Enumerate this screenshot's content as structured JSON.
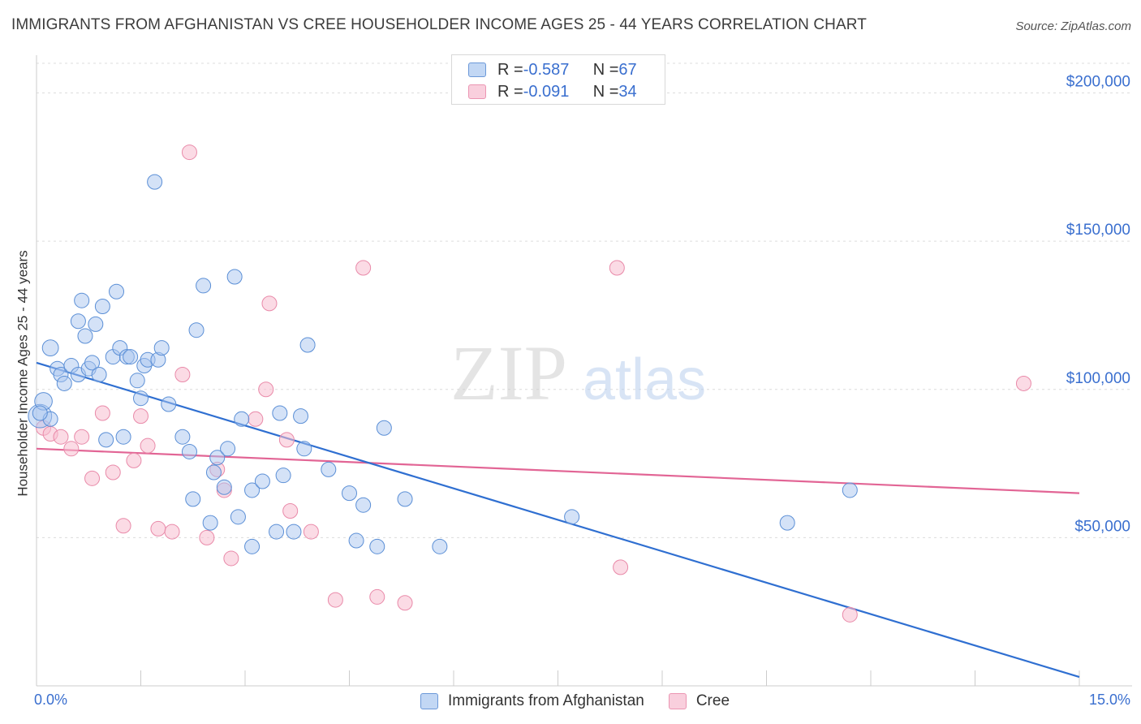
{
  "title": "IMMIGRANTS FROM AFGHANISTAN VS CREE HOUSEHOLDER INCOME AGES 25 - 44 YEARS CORRELATION CHART",
  "source": "Source: ZipAtlas.com",
  "watermark": {
    "zip": "ZIP",
    "atlas": "atlas"
  },
  "legend_top": [
    {
      "r_label": "R = ",
      "r_value": "-0.587",
      "n_label": "N = ",
      "n_value": "67"
    },
    {
      "r_label": "R = ",
      "r_value": "-0.091",
      "n_label": "N = ",
      "n_value": "34"
    }
  ],
  "x_axis": {
    "min_label": "0.0%",
    "max_label": "15.0%"
  },
  "colors": {
    "blue_fill": "#a9c6ef",
    "blue_stroke": "#5b8fd6",
    "blue_line": "#2f6fd1",
    "pink_fill": "#f7bdd0",
    "pink_stroke": "#e98aa9",
    "pink_line": "#e26595",
    "axis_text": "#3a6fcf",
    "grid": "#dcdcdc"
  },
  "chart_data": {
    "type": "scatter",
    "title": "IMMIGRANTS FROM AFGHANISTAN VS CREE HOUSEHOLDER INCOME AGES 25 - 44 YEARS CORRELATION CHART",
    "xlabel": "",
    "ylabel": "Householder Income Ages 25 - 44 years",
    "xlim": [
      0,
      15
    ],
    "ylim": [
      0,
      210000
    ],
    "x_tick_labels": [
      "0.0%",
      "15.0%"
    ],
    "y_ticks": [
      50000,
      100000,
      150000,
      200000
    ],
    "y_tick_labels": [
      "$50,000",
      "$100,000",
      "$150,000",
      "$200,000"
    ],
    "grid": true,
    "legend_position": "bottom-center",
    "series": [
      {
        "name": "Immigrants from Afghanistan",
        "color": "#a9c6ef",
        "r": -0.587,
        "n": 67,
        "trend": {
          "x": [
            0,
            15
          ],
          "y": [
            109000,
            3000
          ]
        },
        "points": [
          {
            "x": 0.05,
            "y": 91000,
            "s": 1.6
          },
          {
            "x": 0.1,
            "y": 96000,
            "s": 1.2
          },
          {
            "x": 0.2,
            "y": 90000,
            "s": 1
          },
          {
            "x": 0.2,
            "y": 114000,
            "s": 1.1
          },
          {
            "x": 0.3,
            "y": 107000,
            "s": 1
          },
          {
            "x": 0.35,
            "y": 105000,
            "s": 1
          },
          {
            "x": 0.4,
            "y": 102000,
            "s": 1
          },
          {
            "x": 0.5,
            "y": 108000,
            "s": 1
          },
          {
            "x": 0.6,
            "y": 123000,
            "s": 1
          },
          {
            "x": 0.6,
            "y": 105000,
            "s": 1
          },
          {
            "x": 0.65,
            "y": 130000,
            "s": 1
          },
          {
            "x": 0.7,
            "y": 118000,
            "s": 1
          },
          {
            "x": 0.75,
            "y": 107000,
            "s": 1
          },
          {
            "x": 0.8,
            "y": 109000,
            "s": 1
          },
          {
            "x": 0.85,
            "y": 122000,
            "s": 1
          },
          {
            "x": 0.9,
            "y": 105000,
            "s": 1
          },
          {
            "x": 0.95,
            "y": 128000,
            "s": 1
          },
          {
            "x": 1.0,
            "y": 83000,
            "s": 1
          },
          {
            "x": 1.1,
            "y": 111000,
            "s": 1
          },
          {
            "x": 1.15,
            "y": 133000,
            "s": 1
          },
          {
            "x": 1.2,
            "y": 114000,
            "s": 1
          },
          {
            "x": 1.25,
            "y": 84000,
            "s": 1
          },
          {
            "x": 1.3,
            "y": 111000,
            "s": 1
          },
          {
            "x": 1.35,
            "y": 111000,
            "s": 1
          },
          {
            "x": 1.45,
            "y": 103000,
            "s": 1
          },
          {
            "x": 1.5,
            "y": 97000,
            "s": 1
          },
          {
            "x": 1.55,
            "y": 108000,
            "s": 1
          },
          {
            "x": 1.6,
            "y": 110000,
            "s": 1
          },
          {
            "x": 1.7,
            "y": 170000,
            "s": 1
          },
          {
            "x": 1.75,
            "y": 110000,
            "s": 1
          },
          {
            "x": 1.8,
            "y": 114000,
            "s": 1
          },
          {
            "x": 1.9,
            "y": 95000,
            "s": 1
          },
          {
            "x": 2.1,
            "y": 84000,
            "s": 1
          },
          {
            "x": 2.2,
            "y": 79000,
            "s": 1
          },
          {
            "x": 2.25,
            "y": 63000,
            "s": 1
          },
          {
            "x": 2.3,
            "y": 120000,
            "s": 1
          },
          {
            "x": 2.4,
            "y": 135000,
            "s": 1
          },
          {
            "x": 2.5,
            "y": 55000,
            "s": 1
          },
          {
            "x": 2.55,
            "y": 72000,
            "s": 1
          },
          {
            "x": 2.6,
            "y": 77000,
            "s": 1
          },
          {
            "x": 2.7,
            "y": 67000,
            "s": 1
          },
          {
            "x": 2.75,
            "y": 80000,
            "s": 1
          },
          {
            "x": 2.85,
            "y": 138000,
            "s": 1
          },
          {
            "x": 2.9,
            "y": 57000,
            "s": 1
          },
          {
            "x": 2.95,
            "y": 90000,
            "s": 1
          },
          {
            "x": 3.1,
            "y": 66000,
            "s": 1
          },
          {
            "x": 3.1,
            "y": 47000,
            "s": 1
          },
          {
            "x": 3.25,
            "y": 69000,
            "s": 1
          },
          {
            "x": 3.45,
            "y": 52000,
            "s": 1
          },
          {
            "x": 3.5,
            "y": 92000,
            "s": 1
          },
          {
            "x": 3.55,
            "y": 71000,
            "s": 1
          },
          {
            "x": 3.7,
            "y": 52000,
            "s": 1
          },
          {
            "x": 3.8,
            "y": 91000,
            "s": 1
          },
          {
            "x": 3.85,
            "y": 80000,
            "s": 1
          },
          {
            "x": 3.9,
            "y": 115000,
            "s": 1
          },
          {
            "x": 4.2,
            "y": 73000,
            "s": 1
          },
          {
            "x": 4.5,
            "y": 65000,
            "s": 1
          },
          {
            "x": 4.6,
            "y": 49000,
            "s": 1
          },
          {
            "x": 4.7,
            "y": 61000,
            "s": 1
          },
          {
            "x": 4.9,
            "y": 47000,
            "s": 1
          },
          {
            "x": 5.0,
            "y": 87000,
            "s": 1
          },
          {
            "x": 5.3,
            "y": 63000,
            "s": 1
          },
          {
            "x": 5.8,
            "y": 47000,
            "s": 1
          },
          {
            "x": 7.7,
            "y": 57000,
            "s": 1
          },
          {
            "x": 10.8,
            "y": 55000,
            "s": 1
          },
          {
            "x": 11.7,
            "y": 66000,
            "s": 1
          },
          {
            "x": 0.05,
            "y": 92000,
            "s": 1
          }
        ]
      },
      {
        "name": "Cree",
        "color": "#f7bdd0",
        "r": -0.091,
        "n": 34,
        "trend": {
          "x": [
            0,
            15
          ],
          "y": [
            80000,
            65000
          ]
        },
        "points": [
          {
            "x": 0.1,
            "y": 87000,
            "s": 1
          },
          {
            "x": 0.2,
            "y": 85000,
            "s": 1
          },
          {
            "x": 0.35,
            "y": 84000,
            "s": 1
          },
          {
            "x": 0.5,
            "y": 80000,
            "s": 1
          },
          {
            "x": 0.65,
            "y": 84000,
            "s": 1
          },
          {
            "x": 0.8,
            "y": 70000,
            "s": 1
          },
          {
            "x": 0.95,
            "y": 92000,
            "s": 1
          },
          {
            "x": 1.1,
            "y": 72000,
            "s": 1
          },
          {
            "x": 1.25,
            "y": 54000,
            "s": 1
          },
          {
            "x": 1.4,
            "y": 76000,
            "s": 1
          },
          {
            "x": 1.5,
            "y": 91000,
            "s": 1
          },
          {
            "x": 1.6,
            "y": 81000,
            "s": 1
          },
          {
            "x": 1.75,
            "y": 53000,
            "s": 1
          },
          {
            "x": 1.95,
            "y": 52000,
            "s": 1
          },
          {
            "x": 2.1,
            "y": 105000,
            "s": 1
          },
          {
            "x": 2.2,
            "y": 180000,
            "s": 1
          },
          {
            "x": 2.45,
            "y": 50000,
            "s": 1
          },
          {
            "x": 2.6,
            "y": 73000,
            "s": 1
          },
          {
            "x": 2.7,
            "y": 66000,
            "s": 1
          },
          {
            "x": 2.8,
            "y": 43000,
            "s": 1
          },
          {
            "x": 3.15,
            "y": 90000,
            "s": 1
          },
          {
            "x": 3.3,
            "y": 100000,
            "s": 1
          },
          {
            "x": 3.35,
            "y": 129000,
            "s": 1
          },
          {
            "x": 3.6,
            "y": 83000,
            "s": 1
          },
          {
            "x": 3.65,
            "y": 59000,
            "s": 1
          },
          {
            "x": 3.95,
            "y": 52000,
            "s": 1
          },
          {
            "x": 4.3,
            "y": 29000,
            "s": 1
          },
          {
            "x": 4.7,
            "y": 141000,
            "s": 1
          },
          {
            "x": 4.9,
            "y": 30000,
            "s": 1
          },
          {
            "x": 5.3,
            "y": 28000,
            "s": 1
          },
          {
            "x": 8.35,
            "y": 141000,
            "s": 1
          },
          {
            "x": 8.4,
            "y": 40000,
            "s": 1
          },
          {
            "x": 11.7,
            "y": 24000,
            "s": 1
          },
          {
            "x": 14.2,
            "y": 102000,
            "s": 1
          }
        ]
      }
    ]
  }
}
